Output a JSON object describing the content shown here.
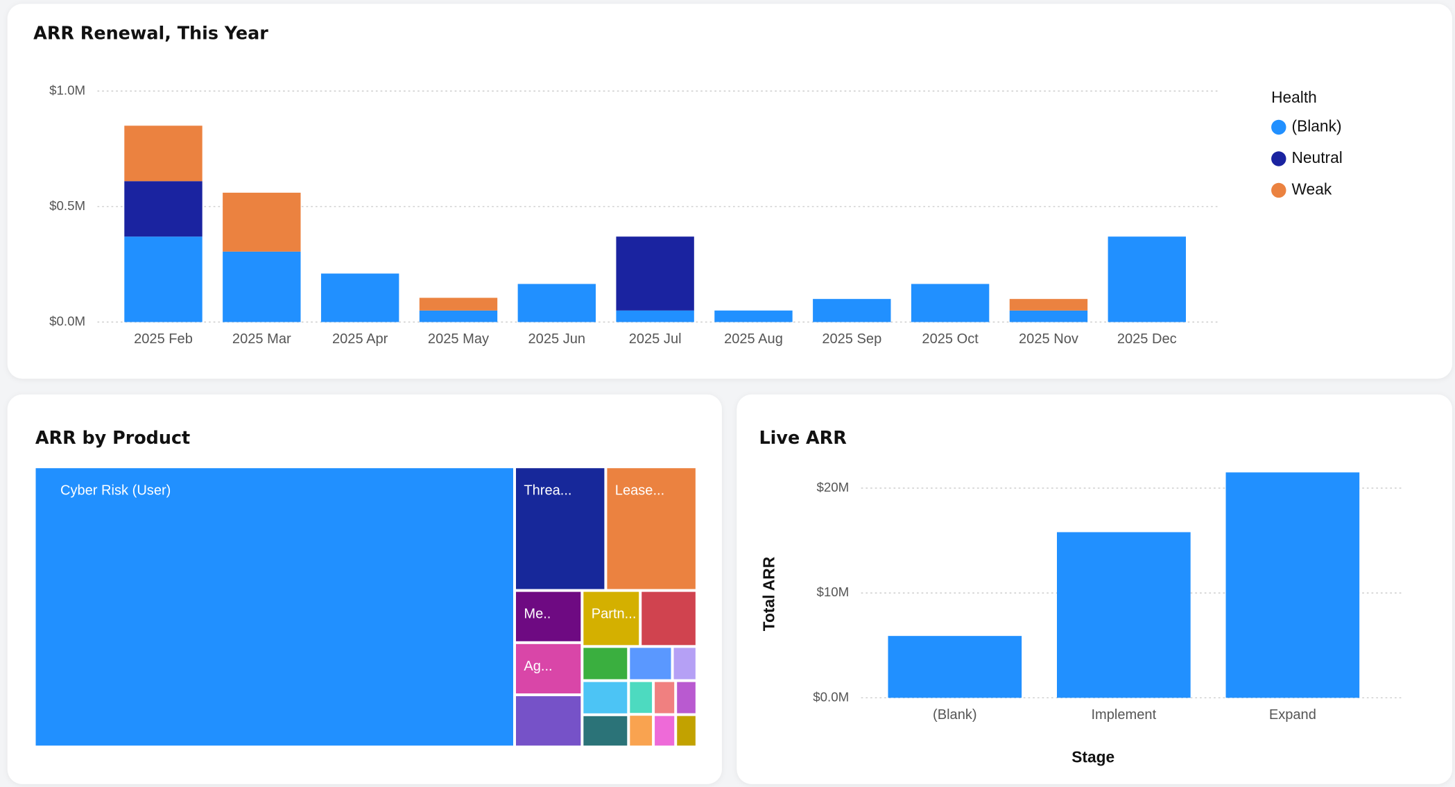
{
  "chart_data": [
    {
      "type": "bar",
      "title": "ARR Renewal, This Year",
      "stacked": true,
      "categories": [
        "2025 Feb",
        "2025 Mar",
        "2025 Apr",
        "2025 May",
        "2025 Jun",
        "2025 Jul",
        "2025 Aug",
        "2025 Sep",
        "2025 Oct",
        "2025 Nov",
        "2025 Dec"
      ],
      "series": [
        {
          "name": "(Blank)",
          "color": "#2190ff",
          "values": [
            370000,
            305000,
            210000,
            50000,
            165000,
            50000,
            50000,
            100000,
            165000,
            50000,
            370000
          ]
        },
        {
          "name": "Neutral",
          "color": "#1a23a0",
          "values": [
            240000,
            null,
            null,
            null,
            null,
            320000,
            null,
            null,
            null,
            null,
            null
          ]
        },
        {
          "name": "Weak",
          "color": "#eb8240",
          "values": [
            240000,
            255000,
            null,
            55000,
            null,
            null,
            null,
            null,
            null,
            50000,
            null
          ]
        }
      ],
      "legend_title": "Health",
      "legend": "right",
      "ylim": [
        0,
        1000000
      ],
      "yticks": [
        {
          "value": 0,
          "label": "$0.0M"
        },
        {
          "value": 500000,
          "label": "$0.5M"
        },
        {
          "value": 1000000,
          "label": "$1.0M"
        }
      ],
      "grid": true
    },
    {
      "type": "treemap",
      "title": "ARR by Product",
      "labels": [
        "Cyber Risk (User)",
        "Threa...",
        "Lease...",
        "Me..",
        "Ag...",
        null,
        "Partn...",
        null,
        null,
        null,
        null,
        null,
        null,
        null,
        null,
        null,
        null,
        null,
        null
      ],
      "values": [
        1528,
        128,
        128,
        40,
        40,
        40,
        37,
        36,
        18,
        18,
        17,
        17,
        9.5,
        9.5,
        9.2,
        8.6,
        8.2,
        8.2,
        7.8
      ],
      "colors": [
        "#2190ff",
        "#17289a",
        "#eb8240",
        "#6e0a82",
        "#d946a8",
        "#7652c8",
        "#d4b000",
        "#d0434f",
        "#3aaf3f",
        "#4cc4f5",
        "#2b7378",
        "#5a98ff",
        "#b5a0f5",
        "#4ddac0",
        "#f9a350",
        "#f08080",
        "#b95ad0",
        "#ee6ad8",
        "#c2a200"
      ]
    },
    {
      "type": "bar",
      "title": "Live ARR",
      "x_label": "Stage",
      "y_label": "Total ARR",
      "categories": [
        "(Blank)",
        "Implement",
        "Expand"
      ],
      "values": [
        5900000,
        15800000,
        21500000
      ],
      "color": "#2190ff",
      "ylim": [
        0,
        22000000
      ],
      "yticks": [
        {
          "value": 0,
          "label": "$0.0M"
        },
        {
          "value": 10000000,
          "label": "$10M"
        },
        {
          "value": 20000000,
          "label": "$20M"
        }
      ],
      "grid": true
    }
  ]
}
